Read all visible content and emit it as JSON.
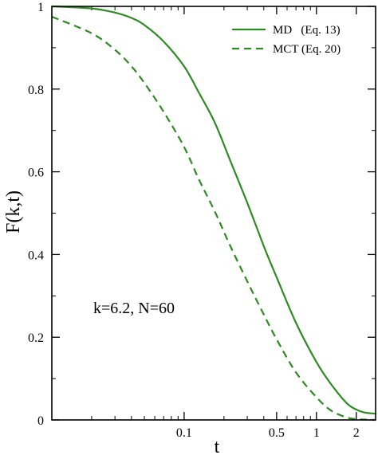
{
  "chart_data": {
    "type": "line",
    "xlabel": "t",
    "ylabel": "F(k,t)",
    "x_scale": "log",
    "xlim": [
      0.01,
      2.8
    ],
    "ylim": [
      0,
      1
    ],
    "x_ticks": [
      {
        "value": 0.1,
        "label": "0.1"
      },
      {
        "value": 0.5,
        "label": "0.5"
      },
      {
        "value": 1,
        "label": "1"
      },
      {
        "value": 2,
        "label": "2"
      }
    ],
    "x_minor_ticks": [
      0.02,
      0.03,
      0.04,
      0.05,
      0.06,
      0.07,
      0.08,
      0.09,
      0.2,
      0.3,
      0.4,
      0.6,
      0.7,
      0.8,
      0.9
    ],
    "y_ticks": [
      {
        "value": 0,
        "label": "0"
      },
      {
        "value": 0.2,
        "label": "0.2"
      },
      {
        "value": 0.4,
        "label": "0.4"
      },
      {
        "value": 0.6,
        "label": "0.6"
      },
      {
        "value": 0.8,
        "label": "0.8"
      },
      {
        "value": 1,
        "label": "1"
      }
    ],
    "y_minor_ticks": [
      0.1,
      0.3,
      0.5,
      0.7,
      0.9
    ],
    "grid": false,
    "legend_position": "top-right",
    "annotation": "k=6.2, N=60",
    "series": [
      {
        "name": "MD   (Eq. 13)",
        "color": "#2e8b22",
        "dash": "solid",
        "x": [
          0.01,
          0.02,
          0.03,
          0.04,
          0.05,
          0.07,
          0.1,
          0.13,
          0.17,
          0.22,
          0.3,
          0.4,
          0.5,
          0.7,
          1.0,
          1.3,
          1.7,
          2.0,
          2.3,
          2.8
        ],
        "y": [
          1.0,
          0.995,
          0.985,
          0.972,
          0.955,
          0.915,
          0.855,
          0.79,
          0.72,
          0.632,
          0.525,
          0.42,
          0.345,
          0.235,
          0.14,
          0.085,
          0.04,
          0.025,
          0.018,
          0.015
        ]
      },
      {
        "name": "MCT (Eq. 20)",
        "color": "#2e8b22",
        "dash": "dashed",
        "x": [
          0.01,
          0.02,
          0.03,
          0.04,
          0.05,
          0.07,
          0.1,
          0.13,
          0.17,
          0.22,
          0.3,
          0.4,
          0.5,
          0.7,
          1.0,
          1.3,
          1.7,
          2.0,
          2.3,
          2.8
        ],
        "y": [
          0.975,
          0.935,
          0.895,
          0.855,
          0.815,
          0.745,
          0.66,
          0.58,
          0.505,
          0.425,
          0.335,
          0.255,
          0.195,
          0.115,
          0.055,
          0.022,
          0.006,
          0.002,
          0.001,
          0.0
        ]
      }
    ]
  }
}
